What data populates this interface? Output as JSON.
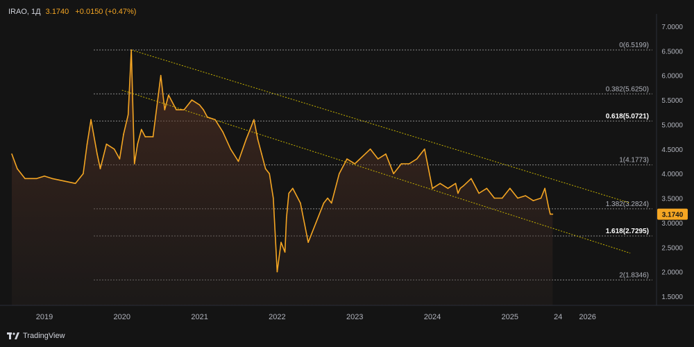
{
  "header": {
    "symbol": "IRAO, 1Д",
    "price": "3.1740",
    "change": "+0.0150 (+0.47%)"
  },
  "brand": {
    "name": "TradingView",
    "icon": "tradingview-logo-icon"
  },
  "colors": {
    "background": "#141414",
    "price_line": "#f5a623",
    "fib_line": "#8a8a8a",
    "trend_line": "#c8b400",
    "price_label_bg": "#f5a623",
    "text": "#b2b5be"
  },
  "chart_data": {
    "type": "area",
    "title": "IRAO, 1Д",
    "x_axis": {
      "ticks": [
        "2019",
        "2020",
        "2021",
        "2022",
        "2023",
        "2024",
        "2025",
        "24",
        "2026"
      ]
    },
    "y_axis": {
      "ticks": [
        "7.0000",
        "6.5000",
        "6.0000",
        "5.5000",
        "5.0000",
        "4.5000",
        "4.0000",
        "3.5000",
        "3.0000",
        "2.5000",
        "2.0000",
        "1.5000"
      ],
      "range": [
        1.1,
        7.2
      ],
      "position": "right"
    },
    "last_price": {
      "value": 3.174,
      "label": "3.1740"
    },
    "series": [
      {
        "x": [
          2018.58,
          2018.65,
          2018.75,
          2018.9,
          2019.0,
          2019.1,
          2019.25,
          2019.4,
          2019.5,
          2019.55,
          2019.6,
          2019.68,
          2019.72,
          2019.8,
          2019.9,
          2019.97,
          2020.02,
          2020.08,
          2020.12,
          2020.16,
          2020.2,
          2020.25,
          2020.3,
          2020.4,
          2020.5,
          2020.55,
          2020.6,
          2020.7,
          2020.8,
          2020.9,
          2021.0,
          2021.05,
          2021.1,
          2021.2,
          2021.3,
          2021.4,
          2021.5,
          2021.6,
          2021.7,
          2021.75,
          2021.8,
          2021.85,
          2021.9,
          2021.95,
          2022.0,
          2022.05,
          2022.1,
          2022.12,
          2022.15,
          2022.2,
          2022.3,
          2022.4,
          2022.5,
          2022.6,
          2022.65,
          2022.7,
          2022.8,
          2022.9,
          2023.0,
          2023.1,
          2023.2,
          2023.3,
          2023.4,
          2023.5,
          2023.6,
          2023.7,
          2023.8,
          2023.9,
          2024.0,
          2024.1,
          2024.2,
          2024.3,
          2024.33,
          2024.36,
          2024.4,
          2024.5,
          2024.6,
          2024.7,
          2024.8,
          2024.9,
          2025.0,
          2025.1,
          2025.2,
          2025.3,
          2025.4,
          2025.45,
          2025.5,
          2025.52,
          2025.55
        ],
        "y": [
          4.4,
          4.1,
          3.9,
          3.9,
          3.95,
          3.9,
          3.85,
          3.8,
          4.0,
          4.6,
          5.1,
          4.4,
          4.1,
          4.6,
          4.5,
          4.3,
          4.8,
          5.2,
          6.52,
          4.2,
          4.6,
          4.9,
          4.75,
          4.75,
          6.0,
          5.3,
          5.6,
          5.3,
          5.3,
          5.5,
          5.4,
          5.3,
          5.15,
          5.1,
          4.85,
          4.5,
          4.25,
          4.7,
          5.1,
          4.7,
          4.4,
          4.1,
          4.0,
          3.5,
          2.0,
          2.6,
          2.4,
          3.1,
          3.6,
          3.7,
          3.4,
          2.6,
          3.0,
          3.4,
          3.5,
          3.4,
          4.0,
          4.3,
          4.2,
          4.35,
          4.5,
          4.3,
          4.4,
          4.0,
          4.2,
          4.2,
          4.3,
          4.5,
          3.7,
          3.8,
          3.7,
          3.8,
          3.6,
          3.7,
          3.75,
          3.9,
          3.6,
          3.7,
          3.5,
          3.5,
          3.7,
          3.5,
          3.55,
          3.45,
          3.5,
          3.7,
          3.3,
          3.174,
          3.174
        ]
      }
    ],
    "fibonacci_levels": [
      {
        "ratio": 0,
        "value": 6.5199,
        "label": "0(6.5199)",
        "bold": false
      },
      {
        "ratio": 0.382,
        "value": 5.625,
        "label": "0.382(5.6250)",
        "bold": false
      },
      {
        "ratio": 0.618,
        "value": 5.0721,
        "label": "0.618(5.0721)",
        "bold": true
      },
      {
        "ratio": 1,
        "value": 4.1773,
        "label": "1(4.1773)",
        "bold": false
      },
      {
        "ratio": 1.382,
        "value": 3.2824,
        "label": "1.382(3.2824)",
        "bold": false
      },
      {
        "ratio": 1.618,
        "value": 2.7295,
        "label": "1.618(2.7295)",
        "bold": true
      },
      {
        "ratio": 2,
        "value": 1.8346,
        "label": "2(1.8346)",
        "bold": false
      }
    ],
    "trend_lines": [
      {
        "from": {
          "x": 2020.12,
          "y": 6.52
        },
        "to": {
          "x": 2026.55,
          "y": 3.4
        }
      },
      {
        "from": {
          "x": 2020.0,
          "y": 5.7
        },
        "to": {
          "x": 2026.55,
          "y": 2.38
        }
      }
    ],
    "grid": false,
    "legend": "none"
  }
}
